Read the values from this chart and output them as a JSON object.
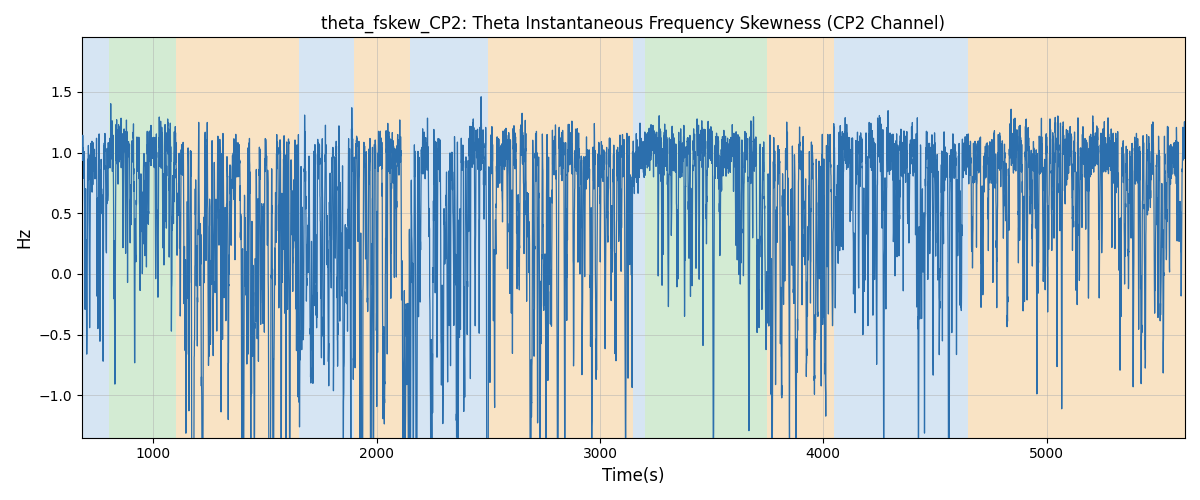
{
  "title": "theta_fskew_CP2: Theta Instantaneous Frequency Skewness (CP2 Channel)",
  "xlabel": "Time(s)",
  "ylabel": "Hz",
  "xlim": [
    680,
    5620
  ],
  "ylim": [
    -1.35,
    1.95
  ],
  "yticks": [
    -1.0,
    -0.5,
    0.0,
    0.5,
    1.0,
    1.5
  ],
  "xticks": [
    1000,
    2000,
    3000,
    4000,
    5000
  ],
  "line_color": "#2c6fad",
  "line_width": 0.9,
  "grid_color": "#b0b0b0",
  "bands": [
    {
      "xstart": 680,
      "xend": 800,
      "color": "#aecde8",
      "alpha": 0.5
    },
    {
      "xstart": 800,
      "xend": 1100,
      "color": "#a8d8a8",
      "alpha": 0.5
    },
    {
      "xstart": 1100,
      "xend": 1650,
      "color": "#f5c98a",
      "alpha": 0.5
    },
    {
      "xstart": 1650,
      "xend": 1900,
      "color": "#aecde8",
      "alpha": 0.5
    },
    {
      "xstart": 1900,
      "xend": 2150,
      "color": "#f5c98a",
      "alpha": 0.5
    },
    {
      "xstart": 2150,
      "xend": 2500,
      "color": "#aecde8",
      "alpha": 0.5
    },
    {
      "xstart": 2500,
      "xend": 3150,
      "color": "#f5c98a",
      "alpha": 0.5
    },
    {
      "xstart": 3150,
      "xend": 3200,
      "color": "#aecde8",
      "alpha": 0.5
    },
    {
      "xstart": 3200,
      "xend": 3750,
      "color": "#a8d8a8",
      "alpha": 0.5
    },
    {
      "xstart": 3750,
      "xend": 4050,
      "color": "#f5c98a",
      "alpha": 0.5
    },
    {
      "xstart": 4050,
      "xend": 4650,
      "color": "#aecde8",
      "alpha": 0.5
    },
    {
      "xstart": 4650,
      "xend": 5620,
      "color": "#f5c98a",
      "alpha": 0.5
    }
  ],
  "figsize": [
    12,
    5
  ],
  "dpi": 100,
  "seed": 42
}
